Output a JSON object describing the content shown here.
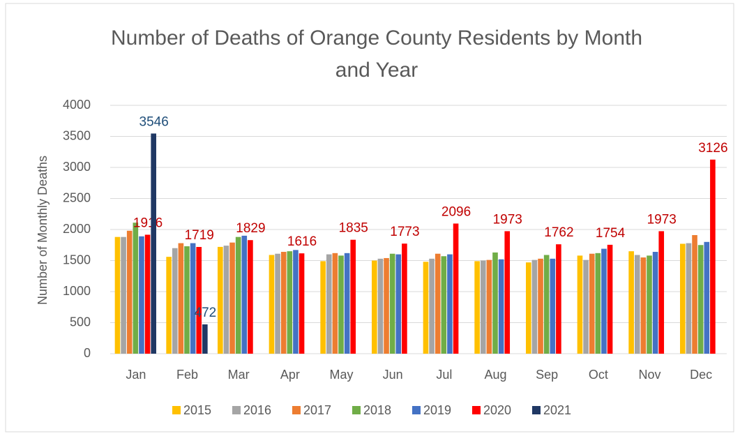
{
  "chart_data": {
    "type": "bar",
    "title": "Number of Deaths of Orange County Residents by Month and Year",
    "y_label": "Number of Monthly Deaths",
    "categories": [
      "Jan",
      "Feb",
      "Mar",
      "Apr",
      "May",
      "Jun",
      "Jul",
      "Aug",
      "Sep",
      "Oct",
      "Nov",
      "Dec"
    ],
    "series": [
      {
        "name": "2015",
        "color": "#FFC000",
        "values": [
          1880,
          1560,
          1720,
          1590,
          1490,
          1500,
          1480,
          1490,
          1470,
          1580,
          1650,
          1770
        ]
      },
      {
        "name": "2016",
        "color": "#A5A5A5",
        "values": [
          1880,
          1700,
          1740,
          1610,
          1600,
          1530,
          1530,
          1500,
          1510,
          1510,
          1590,
          1780
        ]
      },
      {
        "name": "2017",
        "color": "#ED7D31",
        "values": [
          1980,
          1780,
          1790,
          1640,
          1620,
          1540,
          1610,
          1510,
          1530,
          1610,
          1550,
          1910
        ]
      },
      {
        "name": "2018",
        "color": "#70AD47",
        "values": [
          2110,
          1730,
          1880,
          1650,
          1580,
          1610,
          1570,
          1630,
          1590,
          1620,
          1580,
          1750
        ]
      },
      {
        "name": "2019",
        "color": "#4472C4",
        "values": [
          1890,
          1780,
          1900,
          1670,
          1620,
          1600,
          1600,
          1520,
          1530,
          1690,
          1640,
          1800
        ]
      },
      {
        "name": "2020",
        "color": "#FF0000",
        "label_color": "#C00000",
        "data_labels": true,
        "values": [
          1916,
          1719,
          1829,
          1616,
          1835,
          1773,
          2096,
          1973,
          1762,
          1754,
          1973,
          3126
        ]
      },
      {
        "name": "2021",
        "color": "#203864",
        "label_color": "#1F4E79",
        "data_labels": true,
        "values": [
          3546,
          472,
          null,
          null,
          null,
          null,
          null,
          null,
          null,
          null,
          null,
          null
        ]
      }
    ],
    "ylim": [
      0,
      4000
    ],
    "yticks": [
      0,
      500,
      1000,
      1500,
      2000,
      2500,
      3000,
      3500,
      4000
    ],
    "grid": true,
    "legend": "bottom"
  }
}
